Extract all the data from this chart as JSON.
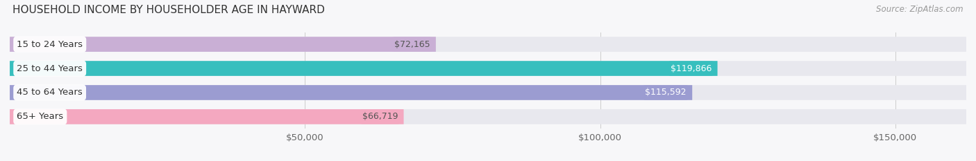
{
  "title": "HOUSEHOLD INCOME BY HOUSEHOLDER AGE IN HAYWARD",
  "source": "Source: ZipAtlas.com",
  "categories": [
    "15 to 24 Years",
    "25 to 44 Years",
    "45 to 64 Years",
    "65+ Years"
  ],
  "values": [
    72165,
    119866,
    115592,
    66719
  ],
  "bar_colors": [
    "#c9afd5",
    "#37bfbe",
    "#9b9cd1",
    "#f4a8c0"
  ],
  "label_colors": [
    "#555555",
    "#ffffff",
    "#ffffff",
    "#555555"
  ],
  "bar_bg_color": "#e8e8ee",
  "xlim": [
    0,
    162000
  ],
  "xticks": [
    50000,
    100000,
    150000
  ],
  "xtick_labels": [
    "$50,000",
    "$100,000",
    "$150,000"
  ],
  "background_color": "#f7f7f9",
  "title_fontsize": 11,
  "bar_height": 0.62,
  "label_fontsize": 9.5,
  "value_label_fontsize": 9,
  "source_fontsize": 8.5
}
